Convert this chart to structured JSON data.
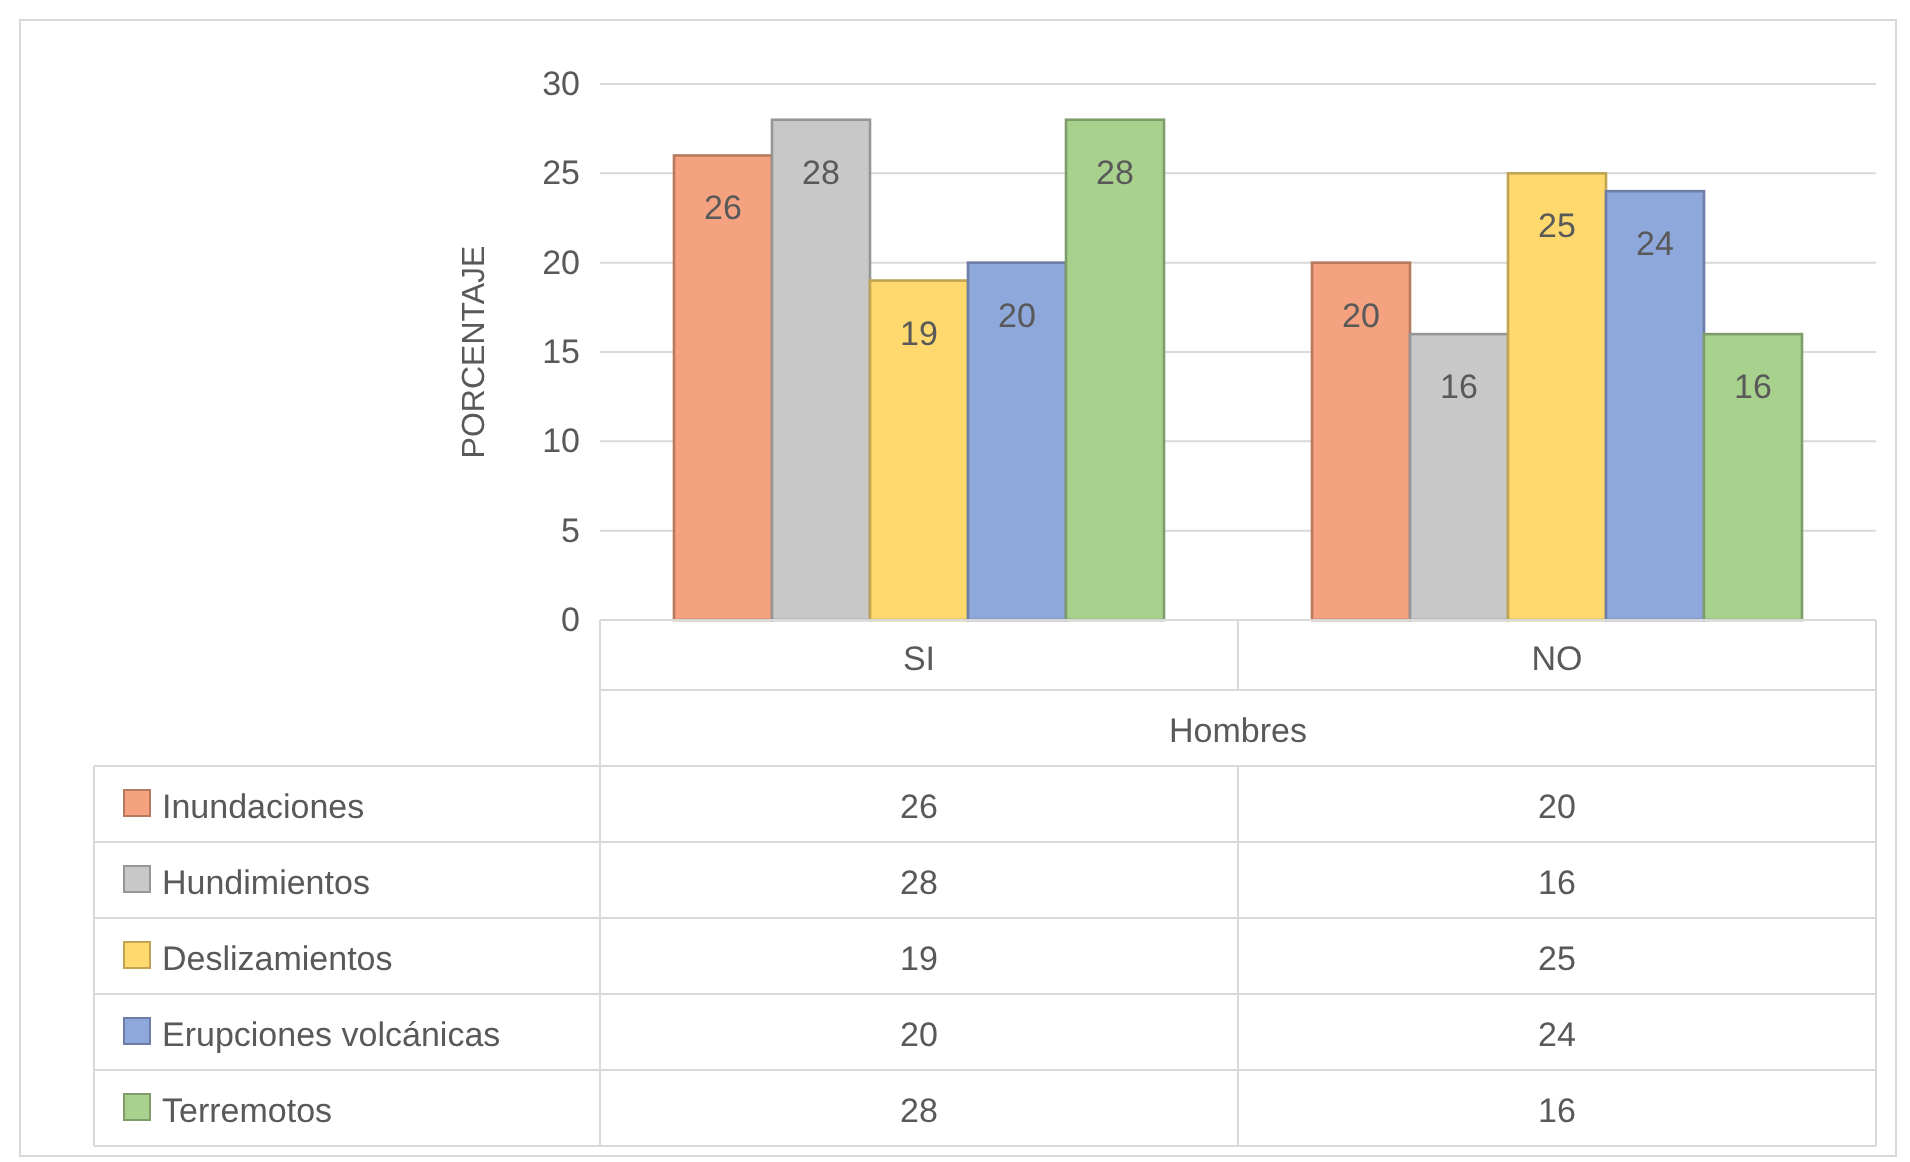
{
  "chart_data": {
    "type": "bar",
    "ylabel": "PORCENTAJE",
    "xlabel": "Hombres",
    "categories": [
      "SI",
      "NO"
    ],
    "series": [
      {
        "name": "Inundaciones",
        "color": "#f4a27f",
        "values": [
          26,
          20
        ],
        "value_labels": [
          "26",
          "20"
        ]
      },
      {
        "name": "Hundimientos",
        "color": "#c8c8c8",
        "values": [
          28,
          16
        ],
        "value_labels": [
          "28",
          "16"
        ]
      },
      {
        "name": "Deslizamientos",
        "color": "#ffd96e",
        "values": [
          19,
          25
        ],
        "value_labels": [
          "19",
          "25"
        ]
      },
      {
        "name": "Erupciones volcánicas",
        "color": "#8fa8dc",
        "values": [
          20,
          24
        ],
        "value_labels": [
          "20",
          "24"
        ]
      },
      {
        "name": "Terremotos",
        "color": "#a9d18e",
        "values": [
          28,
          16
        ],
        "value_labels": [
          "28",
          "16"
        ]
      }
    ],
    "ylim": [
      0,
      30
    ],
    "yticks": [
      0,
      5,
      10,
      15,
      20,
      25,
      30
    ],
    "grid": "y",
    "annotations": [
      "26",
      "20",
      "28",
      "16",
      "19",
      "25",
      "20",
      "24",
      "28",
      "16"
    ],
    "legend": "bottom left"
  }
}
